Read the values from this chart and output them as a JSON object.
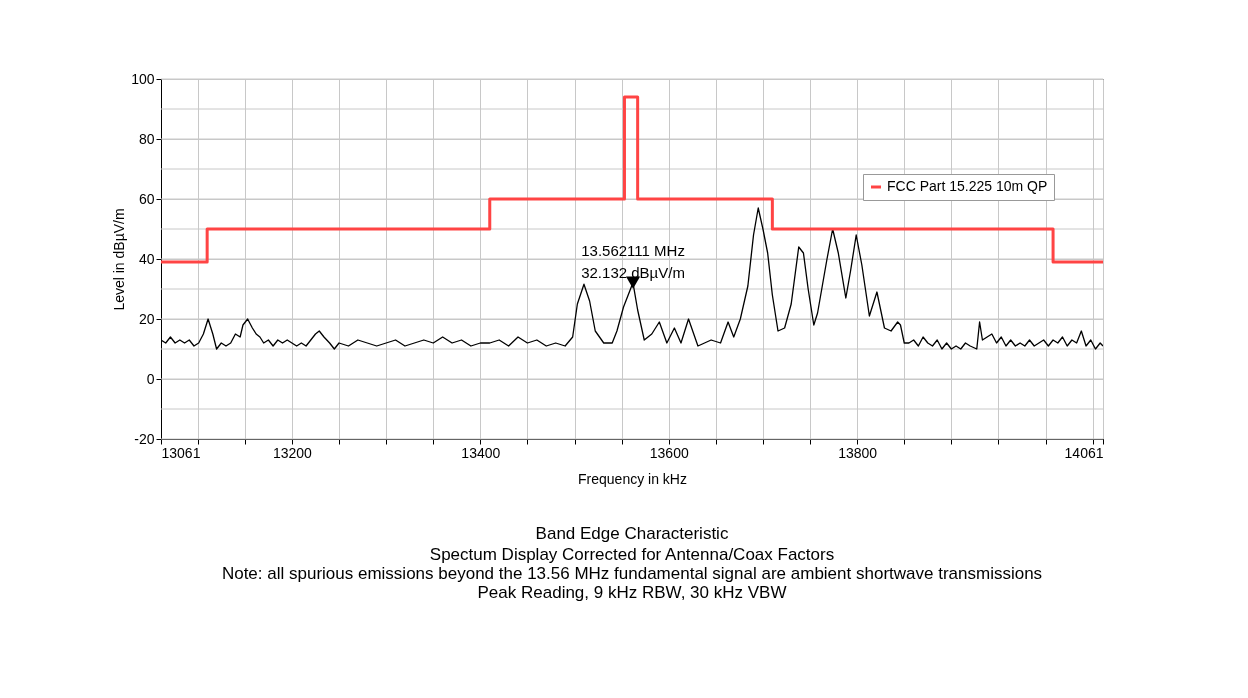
{
  "chart_data": {
    "type": "line",
    "title": "Band Edge Characteristic",
    "subtitle": "Spectum Display Corrected for Antenna/Coax Factors",
    "xlabel": "Frequency in kHz",
    "ylabel": "Level in dBµV/m",
    "xlim": [
      13061,
      14061
    ],
    "ylim": [
      -20,
      100
    ],
    "xticks": [
      13061,
      {
        "value": 13100,
        "label": null
      },
      {
        "value": 13150,
        "label": null
      },
      13200,
      {
        "value": 13250,
        "label": null
      },
      {
        "value": 13300,
        "label": null
      },
      {
        "value": 13350,
        "label": null
      },
      13400,
      {
        "value": 13450,
        "label": null
      },
      {
        "value": 13500,
        "label": null
      },
      {
        "value": 13550,
        "label": null
      },
      13600,
      {
        "value": 13650,
        "label": null
      },
      {
        "value": 13700,
        "label": null
      },
      {
        "value": 13750,
        "label": null
      },
      13800,
      {
        "value": 13850,
        "label": null
      },
      {
        "value": 13900,
        "label": null
      },
      {
        "value": 13950,
        "label": null
      },
      {
        "value": 14000,
        "label": null
      },
      {
        "value": 14050,
        "label": null
      },
      14061
    ],
    "yticks": [
      -20,
      {
        "value": -10,
        "label": null
      },
      0,
      {
        "value": 10,
        "label": null
      },
      20,
      {
        "value": 30,
        "label": null
      },
      40,
      {
        "value": 50,
        "label": null
      },
      60,
      {
        "value": 70,
        "label": null
      },
      80,
      {
        "value": 90,
        "label": null
      },
      100
    ],
    "grid": true,
    "legend": "right",
    "series": [
      {
        "color": "#000000",
        "type": "line",
        "x": [
          13061,
          13066,
          13071,
          13076,
          13081,
          13086,
          13091,
          13096,
          13101,
          13106,
          13111,
          13116,
          13120,
          13125,
          13130,
          13135,
          13140,
          13145,
          13148,
          13153,
          13158,
          13162,
          13166,
          13170,
          13175,
          13180,
          13185,
          13190,
          13195,
          13200,
          13205,
          13210,
          13215,
          13220,
          13225,
          13229,
          13234,
          13240,
          13245,
          13250,
          13260,
          13270,
          13280,
          13290,
          13300,
          13310,
          13320,
          13330,
          13340,
          13350,
          13360,
          13370,
          13380,
          13390,
          13400,
          13410,
          13420,
          13430,
          13440,
          13450,
          13460,
          13470,
          13480,
          13490,
          13498,
          13503,
          13510,
          13516,
          13522,
          13531,
          13540,
          13545,
          13552,
          13562,
          13567,
          13574,
          13582,
          13590,
          13598,
          13606,
          13613,
          13621,
          13631,
          13638,
          13645,
          13655,
          13663,
          13669,
          13676,
          13684,
          13690,
          13695,
          13700,
          13705,
          13710,
          13716,
          13723,
          13730,
          13738,
          13743,
          13748,
          13754,
          13758,
          13763,
          13768,
          13774,
          13780,
          13788,
          13793,
          13799,
          13805,
          13813,
          13821,
          13829,
          13836,
          13843,
          13846,
          13850,
          13855,
          13860,
          13865,
          13870,
          13875,
          13880,
          13885,
          13890,
          13895,
          13900,
          13905,
          13910,
          13915,
          13920,
          13927,
          13930,
          13933,
          13938,
          13943,
          13948,
          13953,
          13958,
          13963,
          13968,
          13973,
          13978,
          13983,
          13988,
          13993,
          13998,
          14003,
          14008,
          14013,
          14018,
          14023,
          14028,
          14033,
          14038,
          14043,
          14048,
          14053,
          14058,
          14061
        ],
        "values": [
          13,
          12,
          14,
          12,
          13,
          12,
          13,
          11,
          12,
          15,
          20,
          15,
          10,
          12,
          11,
          12,
          15,
          14,
          18,
          20,
          17,
          15,
          14,
          12,
          13,
          11,
          13,
          12,
          13,
          12,
          11,
          12,
          11,
          13,
          15,
          16,
          14,
          12,
          10,
          12,
          11,
          13,
          12,
          11,
          12,
          13,
          11,
          12,
          13,
          12,
          14,
          12,
          13,
          11,
          12,
          12,
          13,
          11,
          14,
          12,
          13,
          11,
          12,
          11,
          14,
          25,
          31.6,
          26,
          16,
          12,
          12,
          16,
          24,
          32.1,
          23,
          13,
          15,
          19,
          12,
          17,
          12,
          20,
          11,
          12,
          13,
          12,
          19,
          14,
          20,
          31,
          48,
          57,
          50,
          42,
          28,
          16,
          17,
          25,
          44,
          42,
          30,
          18,
          22,
          31,
          40,
          50,
          42,
          27,
          36,
          48,
          38,
          21,
          29,
          17,
          16,
          19,
          18,
          12,
          12,
          13,
          11,
          14,
          12,
          11,
          13,
          10,
          12,
          10,
          11,
          10,
          12,
          11,
          10,
          19,
          13,
          14,
          15,
          12,
          14,
          11,
          13,
          11,
          12,
          11,
          13,
          11,
          12,
          13,
          11,
          13,
          12,
          14,
          11,
          13,
          12,
          16,
          11,
          13,
          10,
          12,
          11
        ]
      },
      {
        "name": "FCC Part 15.225 10m QP",
        "color": "#ff4444",
        "type": "step",
        "x": [
          13061,
          13110,
          13410,
          13553,
          13567,
          13710,
          14008,
          14061
        ],
        "values": [
          39,
          50,
          60,
          94,
          60,
          50,
          39,
          39
        ]
      },
      {
        "color": "#000000",
        "type": "scatter",
        "marker": "triangle",
        "x": [
          13562.111
        ],
        "values": [
          32.132
        ]
      }
    ],
    "annotations": [
      {
        "text": "13.562111 MHz\n32.132 dBµV/m",
        "x": 13562.111,
        "y": 32.132
      },
      "Note: all spurious emissions beyond the 13.56 MHz fundamental signal are ambient shortwave transmissions",
      "Peak Reading, 9 kHz RBW, 30 kHz VBW"
    ]
  }
}
